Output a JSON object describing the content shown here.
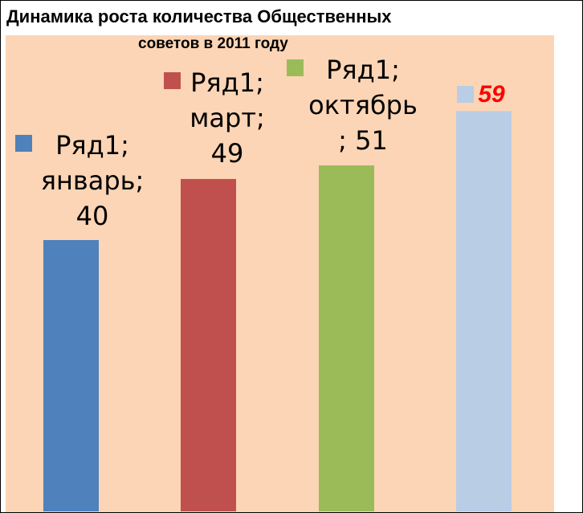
{
  "chart_data": {
    "type": "bar",
    "title_line1": "Динамика роста количества Общественных",
    "title_line2": "советов в 2011 году",
    "ylim": [
      0,
      60
    ],
    "series_name": "Ряд1",
    "categories": [
      "январь",
      "март",
      "октябрь",
      ""
    ],
    "values": [
      40,
      49,
      51,
      59
    ],
    "colors": [
      "#4f81bd",
      "#c0504d",
      "#9bbb59",
      "#b9cde5"
    ],
    "data_labels": [
      [
        "Ряд1;",
        "январь;",
        "40"
      ],
      [
        "Ряд1;",
        "март;",
        "49"
      ],
      [
        "Ряд1;",
        "октябрь",
        "; 51"
      ],
      [
        "59"
      ]
    ],
    "highlight_color": "#ff0000",
    "plot_background": "#fbd5b5"
  }
}
